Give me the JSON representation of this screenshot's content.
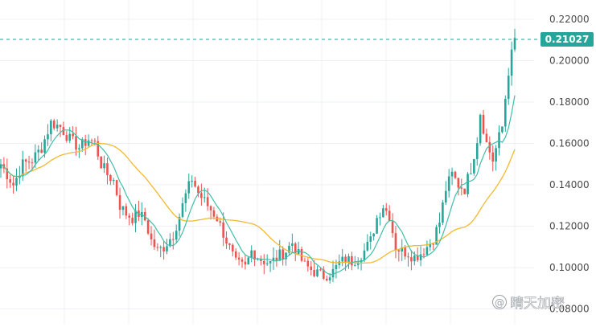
{
  "chart_data": {
    "type": "candlestick",
    "y_ticks": [
      0.08,
      0.1,
      0.12,
      0.14,
      0.16,
      0.18,
      0.2,
      0.22
    ],
    "y_tick_labels": [
      "0.08000",
      "0.10000",
      "0.12000",
      "0.14000",
      "0.16000",
      "0.18000",
      "0.20000",
      "0.22000"
    ],
    "ylim": [
      0.077,
      0.223
    ],
    "grid": true,
    "current_price": 0.21027,
    "current_price_label": "0.21027",
    "colors": {
      "up": "#26a69a",
      "down": "#ef5350",
      "ma_fast": "#3fbfa8",
      "ma_slow": "#f2b92e",
      "grid": "#eef0f3",
      "price_line": "#26a69a"
    },
    "close_path": [
      [
        0,
        0.15
      ],
      [
        2,
        0.145
      ],
      [
        4,
        0.14
      ],
      [
        7,
        0.15
      ],
      [
        10,
        0.152
      ],
      [
        13,
        0.158
      ],
      [
        16,
        0.17
      ],
      [
        19,
        0.168
      ],
      [
        22,
        0.162
      ],
      [
        25,
        0.158
      ],
      [
        28,
        0.162
      ],
      [
        30,
        0.16
      ],
      [
        32,
        0.15
      ],
      [
        34,
        0.145
      ],
      [
        36,
        0.142
      ],
      [
        38,
        0.13
      ],
      [
        40,
        0.126
      ],
      [
        42,
        0.124
      ],
      [
        44,
        0.126
      ],
      [
        46,
        0.123
      ],
      [
        48,
        0.113
      ],
      [
        50,
        0.108
      ],
      [
        52,
        0.11
      ],
      [
        55,
        0.116
      ],
      [
        57,
        0.125
      ],
      [
        59,
        0.135
      ],
      [
        61,
        0.143
      ],
      [
        63,
        0.136
      ],
      [
        66,
        0.13
      ],
      [
        69,
        0.124
      ],
      [
        72,
        0.113
      ],
      [
        75,
        0.102
      ],
      [
        78,
        0.1
      ],
      [
        80,
        0.108
      ],
      [
        83,
        0.104
      ],
      [
        86,
        0.102
      ],
      [
        89,
        0.106
      ],
      [
        91,
        0.108
      ],
      [
        93,
        0.112
      ],
      [
        95,
        0.106
      ],
      [
        97,
        0.101
      ],
      [
        100,
        0.098
      ],
      [
        103,
        0.096
      ],
      [
        106,
        0.098
      ],
      [
        108,
        0.102
      ],
      [
        110,
        0.104
      ],
      [
        112,
        0.103
      ],
      [
        114,
        0.105
      ],
      [
        116,
        0.108
      ],
      [
        118,
        0.113
      ],
      [
        120,
        0.124
      ],
      [
        122,
        0.13
      ],
      [
        124,
        0.125
      ],
      [
        126,
        0.11
      ],
      [
        128,
        0.108
      ],
      [
        130,
        0.107
      ],
      [
        132,
        0.105
      ],
      [
        134,
        0.107
      ],
      [
        136,
        0.11
      ],
      [
        138,
        0.114
      ],
      [
        140,
        0.122
      ],
      [
        142,
        0.138
      ],
      [
        144,
        0.145
      ],
      [
        146,
        0.14
      ],
      [
        148,
        0.138
      ],
      [
        150,
        0.148
      ],
      [
        152,
        0.162
      ],
      [
        153,
        0.175
      ],
      [
        155,
        0.16
      ],
      [
        157,
        0.152
      ],
      [
        159,
        0.163
      ],
      [
        160,
        0.168
      ],
      [
        161,
        0.182
      ],
      [
        162,
        0.195
      ],
      [
        163,
        0.203
      ],
      [
        164,
        0.21
      ]
    ],
    "n_candles": 165,
    "annotations": [
      "晴天加密"
    ]
  },
  "watermark": {
    "symbol": "@",
    "text": "晴天加密"
  }
}
